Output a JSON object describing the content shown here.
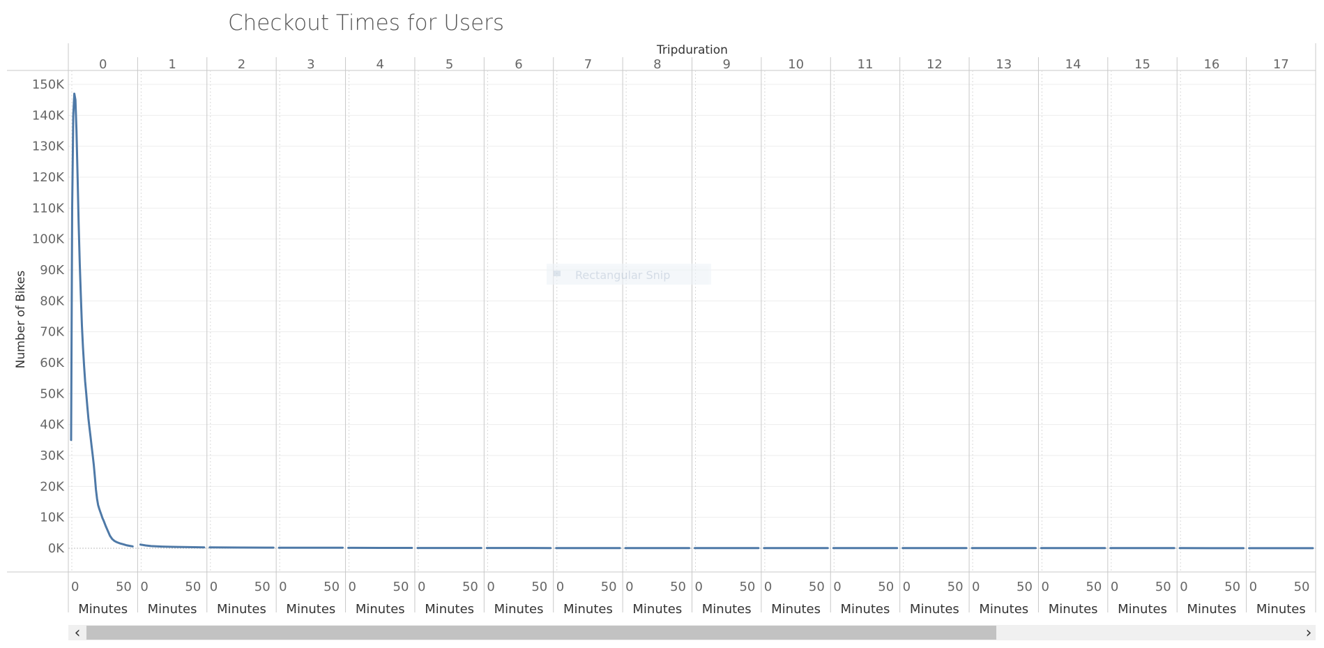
{
  "colors": {
    "line": "#4e79a7",
    "grid": "#ededed",
    "divider": "#c8c8c8",
    "scroll_track": "#f0f0f0",
    "scroll_thumb": "#c2c2c2"
  },
  "scrollbar": {
    "left_arrow": "‹",
    "right_arrow": "›",
    "position": 0.0,
    "extent": 0.75
  },
  "overlay": {
    "label": "Rectangular Snip"
  },
  "chart_data": {
    "type": "line",
    "title": "Checkout Times for Users",
    "column_header": "Tripduration",
    "ylabel": "Number of Bikes",
    "panel_xlabel": "Minutes",
    "ylim": [
      0,
      150000
    ],
    "yticks": [
      0,
      10000,
      20000,
      30000,
      40000,
      50000,
      60000,
      70000,
      80000,
      90000,
      100000,
      110000,
      120000,
      130000,
      140000,
      150000
    ],
    "ytick_labels": [
      "0K",
      "10K",
      "20K",
      "30K",
      "40K",
      "50K",
      "60K",
      "70K",
      "80K",
      "90K",
      "100K",
      "110K",
      "120K",
      "130K",
      "140K",
      "150K"
    ],
    "panel_xlim": [
      0,
      59
    ],
    "panel_xticks": [
      0,
      50
    ],
    "panels": [
      {
        "label": "0",
        "x": [
          0,
          1,
          2,
          3,
          4,
          5,
          6,
          7,
          8,
          9,
          10,
          11,
          12,
          13,
          14,
          15,
          16,
          17,
          18,
          19,
          20,
          21,
          22,
          23,
          24,
          25,
          26,
          27,
          28,
          29,
          30,
          32,
          34,
          36,
          38,
          40,
          42,
          45,
          48,
          51,
          54,
          57
        ],
        "y": [
          35000,
          110000,
          140000,
          147000,
          145000,
          135000,
          120000,
          105000,
          92000,
          82000,
          72000,
          65000,
          59000,
          54000,
          50000,
          46000,
          42000,
          39000,
          36000,
          33000,
          30000,
          27000,
          23000,
          19000,
          16000,
          14000,
          12800,
          11800,
          10800,
          9800,
          9000,
          7200,
          5600,
          4000,
          3000,
          2400,
          2000,
          1600,
          1300,
          1000,
          800,
          600
        ]
      },
      {
        "label": "1",
        "x": [
          0,
          5,
          10,
          20,
          30,
          40,
          50,
          59
        ],
        "y": [
          1200,
          900,
          700,
          550,
          450,
          380,
          330,
          300
        ]
      },
      {
        "label": "2",
        "x": [
          0,
          30,
          59
        ],
        "y": [
          280,
          230,
          200
        ]
      },
      {
        "label": "3",
        "x": [
          0,
          30,
          59
        ],
        "y": [
          190,
          170,
          150
        ]
      },
      {
        "label": "4",
        "x": [
          0,
          30,
          59
        ],
        "y": [
          140,
          120,
          110
        ]
      },
      {
        "label": "5",
        "x": [
          0,
          30,
          59
        ],
        "y": [
          100,
          95,
          90
        ]
      },
      {
        "label": "6",
        "x": [
          0,
          30,
          59
        ],
        "y": [
          85,
          80,
          75
        ]
      },
      {
        "label": "7",
        "x": [
          0,
          30,
          59
        ],
        "y": [
          72,
          68,
          65
        ]
      },
      {
        "label": "8",
        "x": [
          0,
          30,
          59
        ],
        "y": [
          62,
          60,
          58
        ]
      },
      {
        "label": "9",
        "x": [
          0,
          30,
          59
        ],
        "y": [
          56,
          54,
          52
        ]
      },
      {
        "label": "10",
        "x": [
          0,
          30,
          59
        ],
        "y": [
          50,
          48,
          46
        ]
      },
      {
        "label": "11",
        "x": [
          0,
          30,
          59
        ],
        "y": [
          45,
          44,
          43
        ]
      },
      {
        "label": "12",
        "x": [
          0,
          30,
          59
        ],
        "y": [
          42,
          41,
          40
        ]
      },
      {
        "label": "13",
        "x": [
          0,
          30,
          59
        ],
        "y": [
          40,
          39,
          38
        ]
      },
      {
        "label": "14",
        "x": [
          0,
          30,
          59
        ],
        "y": [
          38,
          37,
          36
        ]
      },
      {
        "label": "15",
        "x": [
          0,
          30,
          59
        ],
        "y": [
          36,
          35,
          34
        ]
      },
      {
        "label": "16",
        "x": [
          0,
          30,
          59
        ],
        "y": [
          34,
          33,
          32
        ]
      },
      {
        "label": "17",
        "x": [
          0,
          30,
          59
        ],
        "y": [
          32,
          31,
          30
        ]
      }
    ]
  }
}
